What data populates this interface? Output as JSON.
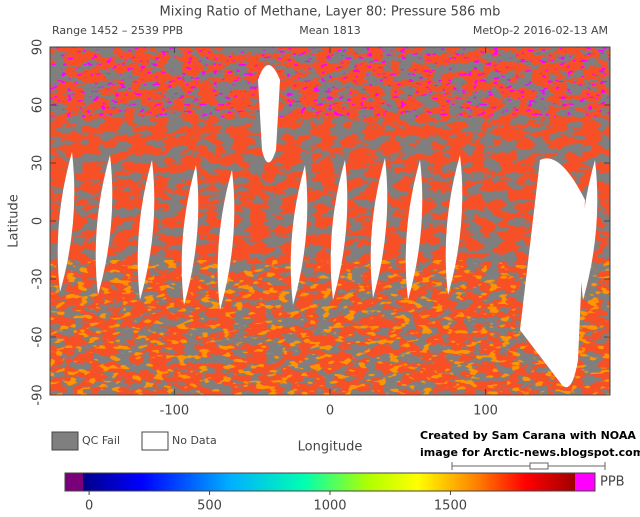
{
  "title": "Mixing Ratio of Methane, Layer 80: Pressure 586 mb",
  "range": "Range 1452 – 2539 PPB",
  "mean": "Mean 1813",
  "source": "MetOp-2 2016-02-13 AM",
  "map": {
    "xlabel": "Longitude",
    "ylabel": "Latitude",
    "xlim": [
      -180,
      180
    ],
    "ylim": [
      -90,
      90
    ],
    "xticks": [
      -100,
      0,
      100
    ],
    "yticks": [
      90,
      60,
      30,
      0,
      -30,
      -60,
      -90
    ]
  },
  "legend": [
    "QC Fail",
    "No Data"
  ],
  "credit": [
    "Created by Sam Carana with NOAA",
    "image for Arctic-news.blogspot.com"
  ],
  "colorbar": {
    "label": "PPB",
    "lim": [
      -100,
      2100
    ],
    "ticks": [
      0,
      500,
      1000,
      1500
    ]
  }
}
